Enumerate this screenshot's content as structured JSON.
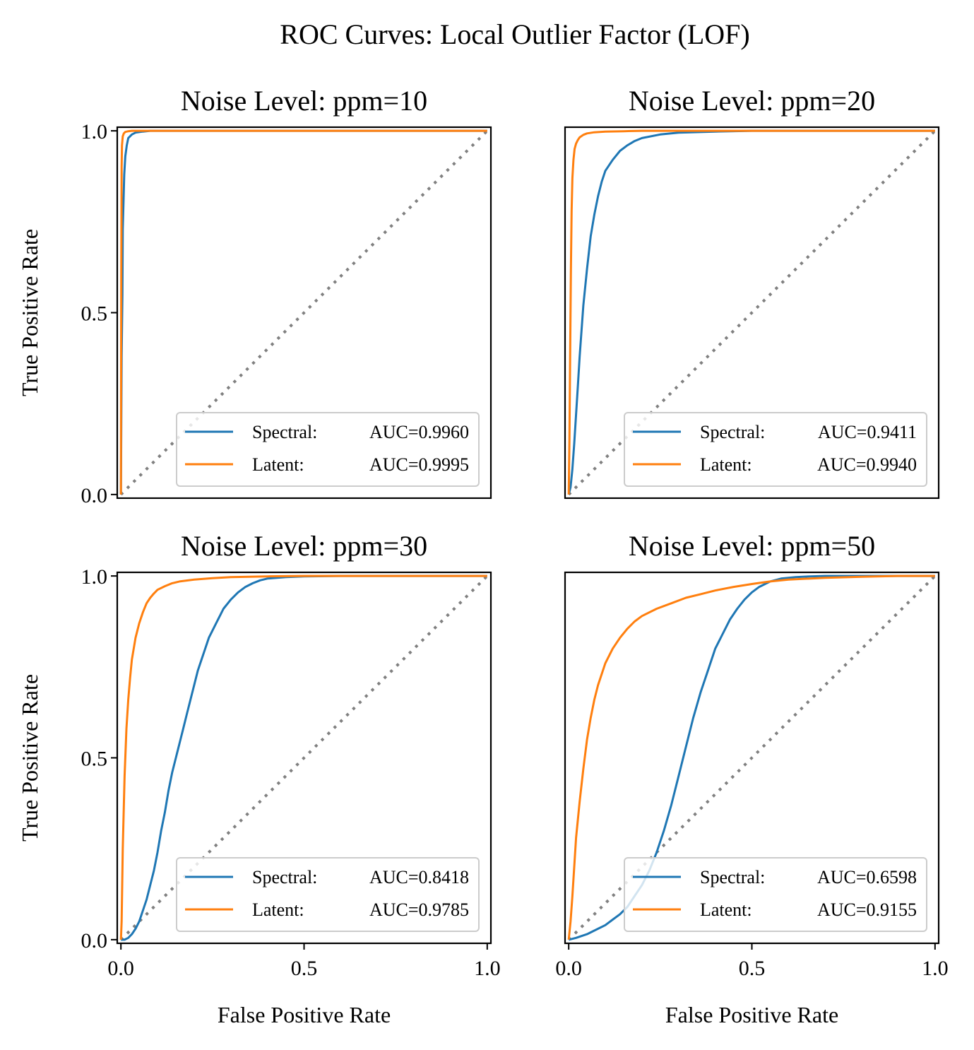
{
  "figure": {
    "title": "ROC Curves: Local Outlier Factor (LOF)"
  },
  "colors": {
    "spectral": "#1f77b4",
    "latent": "#ff7f0e",
    "diagonal": "#808080"
  },
  "chart_data": [
    {
      "type": "line",
      "title": "Noise Level: ppm=10",
      "xlabel": "",
      "ylabel": "True Positive Rate",
      "xlim": [
        -0.01,
        1.01
      ],
      "ylim": [
        -0.01,
        1.01
      ],
      "xticks": [],
      "yticks": [
        "0.0",
        "0.5",
        "1.0"
      ],
      "legend": "lower-right",
      "diagonal": {
        "style": "dotted",
        "x": [
          0,
          1
        ],
        "y": [
          0,
          1
        ]
      },
      "series": [
        {
          "name": "Spectral",
          "prefix": "Spectral:",
          "auc_text": "AUC=0.9960",
          "auc": 0.996,
          "x": [
            0,
            0.002,
            0.004,
            0.005,
            0.007,
            0.009,
            0.012,
            0.016,
            0.02,
            0.03,
            0.04,
            0.06,
            0.08,
            1.0
          ],
          "y": [
            0,
            0.38,
            0.55,
            0.73,
            0.8,
            0.88,
            0.93,
            0.96,
            0.98,
            0.99,
            0.995,
            0.998,
            1.0,
            1.0
          ]
        },
        {
          "name": "Latent",
          "prefix": "Latent:",
          "auc_text": "AUC=0.9995",
          "auc": 0.9995,
          "x": [
            0,
            0.001,
            0.002,
            0.003,
            0.005,
            0.008,
            0.012,
            0.02,
            0.03,
            1.0
          ],
          "y": [
            0,
            0.6,
            0.9,
            0.96,
            0.985,
            0.993,
            0.997,
            0.999,
            1.0,
            1.0
          ]
        }
      ]
    },
    {
      "type": "line",
      "title": "Noise Level: ppm=20",
      "xlabel": "",
      "ylabel": "",
      "xlim": [
        -0.01,
        1.01
      ],
      "ylim": [
        -0.01,
        1.01
      ],
      "xticks": [],
      "yticks": [],
      "legend": "lower-right",
      "diagonal": {
        "style": "dotted",
        "x": [
          0,
          1
        ],
        "y": [
          0,
          1
        ]
      },
      "series": [
        {
          "name": "Spectral",
          "prefix": "Spectral:",
          "auc_text": "AUC=0.9411",
          "auc": 0.9411,
          "x": [
            0,
            0.005,
            0.01,
            0.015,
            0.02,
            0.025,
            0.03,
            0.04,
            0.05,
            0.06,
            0.07,
            0.08,
            0.09,
            0.1,
            0.12,
            0.14,
            0.16,
            0.18,
            0.2,
            0.25,
            0.3,
            0.4,
            0.5,
            1.0
          ],
          "y": [
            0,
            0.02,
            0.07,
            0.14,
            0.22,
            0.3,
            0.38,
            0.52,
            0.62,
            0.71,
            0.77,
            0.82,
            0.86,
            0.89,
            0.92,
            0.945,
            0.96,
            0.972,
            0.98,
            0.99,
            0.995,
            0.998,
            1.0,
            1.0
          ]
        },
        {
          "name": "Latent",
          "prefix": "Latent:",
          "auc_text": "AUC=0.9940",
          "auc": 0.994,
          "x": [
            0,
            0.002,
            0.004,
            0.006,
            0.008,
            0.01,
            0.013,
            0.016,
            0.02,
            0.025,
            0.03,
            0.04,
            0.05,
            0.07,
            0.1,
            0.15,
            0.2,
            0.3,
            1.0
          ],
          "y": [
            0,
            0.15,
            0.4,
            0.62,
            0.78,
            0.87,
            0.92,
            0.95,
            0.965,
            0.975,
            0.982,
            0.989,
            0.993,
            0.996,
            0.998,
            0.999,
            1.0,
            1.0,
            1.0
          ]
        }
      ]
    },
    {
      "type": "line",
      "title": "Noise Level: ppm=30",
      "xlabel": "False Positive Rate",
      "ylabel": "True Positive Rate",
      "xlim": [
        -0.01,
        1.01
      ],
      "ylim": [
        -0.01,
        1.01
      ],
      "xticks": [
        "0.0",
        "0.5",
        "1.0"
      ],
      "yticks": [
        "0.0",
        "0.5",
        "1.0"
      ],
      "legend": "lower-right",
      "diagonal": {
        "style": "dotted",
        "x": [
          0,
          1
        ],
        "y": [
          0,
          1
        ]
      },
      "series": [
        {
          "name": "Spectral",
          "prefix": "Spectral:",
          "auc_text": "AUC=0.8418",
          "auc": 0.8418,
          "x": [
            0,
            0.01,
            0.02,
            0.03,
            0.04,
            0.05,
            0.06,
            0.07,
            0.08,
            0.09,
            0.1,
            0.11,
            0.12,
            0.13,
            0.14,
            0.15,
            0.16,
            0.17,
            0.18,
            0.19,
            0.2,
            0.21,
            0.22,
            0.23,
            0.24,
            0.25,
            0.26,
            0.27,
            0.28,
            0.3,
            0.32,
            0.34,
            0.36,
            0.38,
            0.4,
            0.45,
            0.5,
            0.6,
            0.7,
            1.0
          ],
          "y": [
            0,
            0.0,
            0.005,
            0.015,
            0.03,
            0.05,
            0.08,
            0.11,
            0.15,
            0.19,
            0.24,
            0.3,
            0.35,
            0.41,
            0.46,
            0.5,
            0.54,
            0.58,
            0.62,
            0.66,
            0.7,
            0.74,
            0.77,
            0.8,
            0.83,
            0.85,
            0.87,
            0.89,
            0.91,
            0.935,
            0.955,
            0.97,
            0.98,
            0.988,
            0.993,
            0.997,
            0.999,
            1.0,
            1.0,
            1.0
          ]
        },
        {
          "name": "Latent",
          "prefix": "Latent:",
          "auc_text": "AUC=0.9785",
          "auc": 0.9785,
          "x": [
            0,
            0.002,
            0.005,
            0.01,
            0.015,
            0.02,
            0.025,
            0.03,
            0.04,
            0.05,
            0.06,
            0.07,
            0.08,
            0.09,
            0.1,
            0.12,
            0.14,
            0.16,
            0.2,
            0.25,
            0.3,
            0.4,
            0.5,
            1.0
          ],
          "y": [
            0,
            0.05,
            0.25,
            0.45,
            0.58,
            0.66,
            0.72,
            0.77,
            0.83,
            0.87,
            0.9,
            0.925,
            0.94,
            0.952,
            0.962,
            0.972,
            0.98,
            0.985,
            0.99,
            0.994,
            0.997,
            0.999,
            1.0,
            1.0
          ]
        }
      ]
    },
    {
      "type": "line",
      "title": "Noise Level: ppm=50",
      "xlabel": "False Positive Rate",
      "ylabel": "",
      "xlim": [
        -0.01,
        1.01
      ],
      "ylim": [
        -0.01,
        1.01
      ],
      "xticks": [
        "0.0",
        "0.5",
        "1.0"
      ],
      "yticks": [],
      "legend": "lower-right",
      "diagonal": {
        "style": "dotted",
        "x": [
          0,
          1
        ],
        "y": [
          0,
          1
        ]
      },
      "series": [
        {
          "name": "Spectral",
          "prefix": "Spectral:",
          "auc_text": "AUC=0.6598",
          "auc": 0.6598,
          "x": [
            0,
            0.02,
            0.05,
            0.08,
            0.1,
            0.12,
            0.14,
            0.16,
            0.18,
            0.2,
            0.22,
            0.24,
            0.26,
            0.28,
            0.3,
            0.32,
            0.34,
            0.36,
            0.38,
            0.4,
            0.42,
            0.44,
            0.46,
            0.48,
            0.5,
            0.52,
            0.55,
            0.58,
            0.62,
            0.66,
            0.7,
            0.8,
            1.0
          ],
          "y": [
            0,
            0.005,
            0.015,
            0.03,
            0.04,
            0.055,
            0.07,
            0.09,
            0.12,
            0.15,
            0.19,
            0.24,
            0.3,
            0.37,
            0.45,
            0.53,
            0.61,
            0.68,
            0.74,
            0.8,
            0.84,
            0.88,
            0.91,
            0.935,
            0.955,
            0.97,
            0.985,
            0.993,
            0.997,
            0.999,
            1.0,
            1.0,
            1.0
          ]
        },
        {
          "name": "Latent",
          "prefix": "Latent:",
          "auc_text": "AUC=0.9155",
          "auc": 0.9155,
          "x": [
            0,
            0.005,
            0.01,
            0.015,
            0.02,
            0.03,
            0.04,
            0.05,
            0.06,
            0.07,
            0.08,
            0.1,
            0.12,
            0.14,
            0.16,
            0.18,
            0.2,
            0.24,
            0.28,
            0.32,
            0.36,
            0.4,
            0.45,
            0.5,
            0.55,
            0.6,
            0.7,
            0.8,
            0.9,
            1.0
          ],
          "y": [
            0,
            0.05,
            0.12,
            0.2,
            0.28,
            0.38,
            0.47,
            0.55,
            0.61,
            0.66,
            0.7,
            0.76,
            0.8,
            0.83,
            0.855,
            0.875,
            0.89,
            0.91,
            0.925,
            0.94,
            0.95,
            0.96,
            0.97,
            0.978,
            0.985,
            0.99,
            0.995,
            0.998,
            1.0,
            1.0
          ]
        }
      ]
    }
  ]
}
